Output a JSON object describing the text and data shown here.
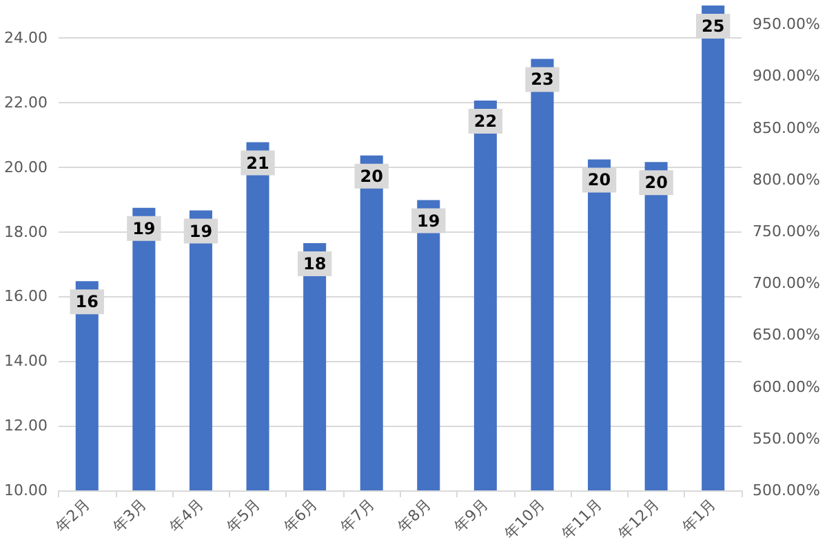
{
  "chart_data": {
    "type": "bar",
    "categories": [
      "年2月",
      "年3月",
      "年4月",
      "年5月",
      "年6月",
      "年7月",
      "年8月",
      "年9月",
      "年10月",
      "年11月",
      "年12月",
      "年1月"
    ],
    "values": [
      16.47,
      18.74,
      18.66,
      20.77,
      17.65,
      20.36,
      18.98,
      22.06,
      23.35,
      20.24,
      20.16,
      25.0
    ],
    "value_labels": [
      "16",
      "19",
      "19",
      "21",
      "18",
      "20",
      "19",
      "22",
      "23",
      "20",
      "20",
      "25"
    ],
    "color": "#4472c4",
    "ylim": [
      10,
      25
    ],
    "yticks": [
      {
        "value": 10,
        "label": "10.00"
      },
      {
        "value": 12,
        "label": "12.00"
      },
      {
        "value": 14,
        "label": "14.00"
      },
      {
        "value": 16,
        "label": "16.00"
      },
      {
        "value": 18,
        "label": "18.00"
      },
      {
        "value": 20,
        "label": "20.00"
      },
      {
        "value": 22,
        "label": "22.00"
      },
      {
        "value": 24,
        "label": "24.00"
      }
    ],
    "y2lim": [
      500,
      968
    ],
    "y2ticks": [
      {
        "value": 500,
        "label": "500.00%"
      },
      {
        "value": 550,
        "label": "550.00%"
      },
      {
        "value": 600,
        "label": "600.00%"
      },
      {
        "value": 650,
        "label": "650.00%"
      },
      {
        "value": 700,
        "label": "700.00%"
      },
      {
        "value": 750,
        "label": "750.00%"
      },
      {
        "value": 800,
        "label": "800.00%"
      },
      {
        "value": 850,
        "label": "850.00%"
      },
      {
        "value": 900,
        "label": "900.00%"
      },
      {
        "value": 950,
        "label": "950.00%"
      }
    ],
    "grid": "y"
  }
}
